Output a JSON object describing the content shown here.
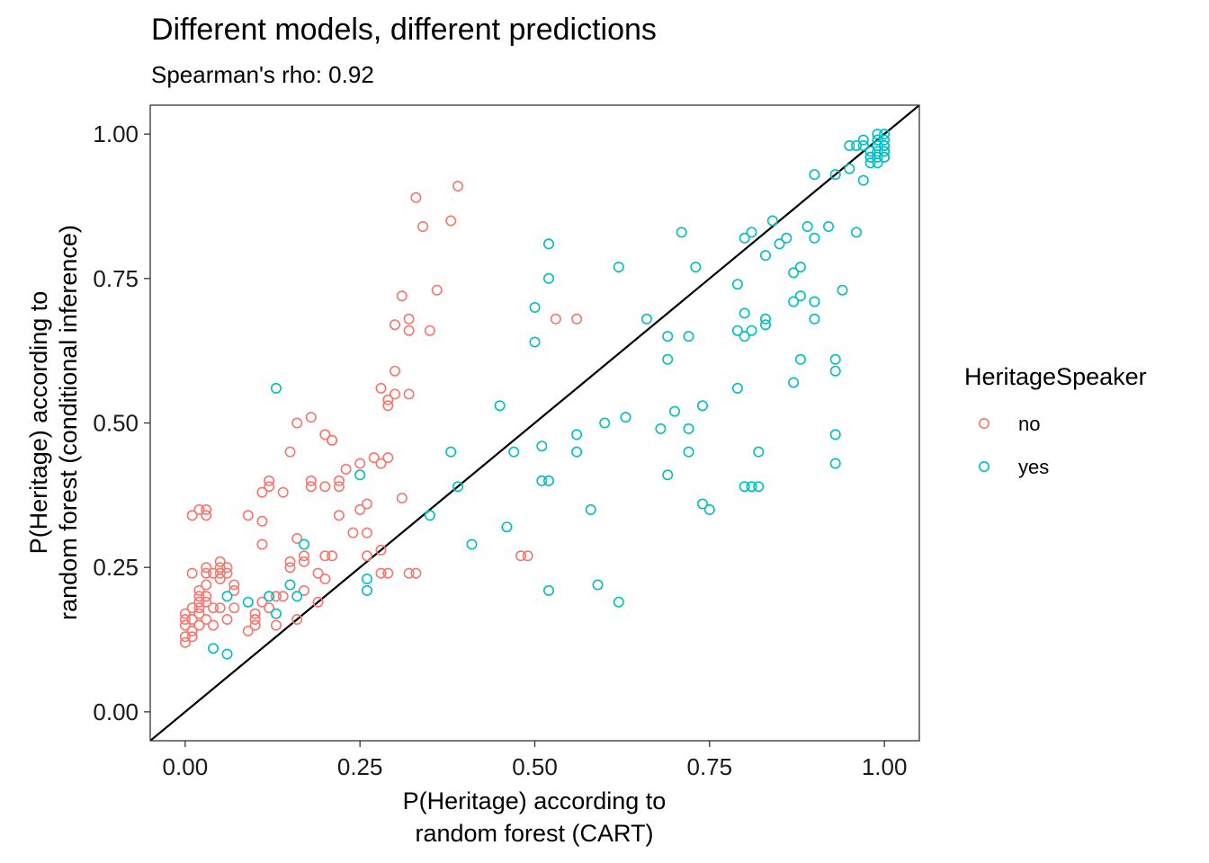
{
  "chart_data": {
    "type": "scatter",
    "title": "Different models, different predictions",
    "subtitle": "Spearman's rho: 0.92",
    "xlabel": [
      "P(Heritage) according to",
      "random forest (CART)"
    ],
    "ylabel": [
      "P(Heritage) according to",
      "random forest (conditional inference)"
    ],
    "xlim": [
      -0.05,
      1.05
    ],
    "ylim": [
      -0.05,
      1.05
    ],
    "x_ticks": [
      "0.00",
      "0.25",
      "0.50",
      "0.75",
      "1.00"
    ],
    "y_ticks": [
      "0.00",
      "0.25",
      "0.50",
      "0.75",
      "1.00"
    ],
    "grid": false,
    "reference_line": {
      "slope": 1,
      "intercept": 0
    },
    "legend": {
      "title": "HeritageSpeaker",
      "position": "right"
    },
    "series": [
      {
        "name": "no",
        "color": "#F8766D",
        "points": [
          [
            0.0,
            0.17
          ],
          [
            0.0,
            0.16
          ],
          [
            0.0,
            0.15
          ],
          [
            0.0,
            0.13
          ],
          [
            0.0,
            0.12
          ],
          [
            0.01,
            0.16
          ],
          [
            0.01,
            0.14
          ],
          [
            0.01,
            0.13
          ],
          [
            0.01,
            0.18
          ],
          [
            0.01,
            0.34
          ],
          [
            0.01,
            0.24
          ],
          [
            0.02,
            0.35
          ],
          [
            0.02,
            0.21
          ],
          [
            0.02,
            0.2
          ],
          [
            0.02,
            0.19
          ],
          [
            0.02,
            0.18
          ],
          [
            0.02,
            0.17
          ],
          [
            0.02,
            0.15
          ],
          [
            0.03,
            0.35
          ],
          [
            0.03,
            0.34
          ],
          [
            0.03,
            0.25
          ],
          [
            0.03,
            0.24
          ],
          [
            0.03,
            0.22
          ],
          [
            0.03,
            0.2
          ],
          [
            0.03,
            0.19
          ],
          [
            0.03,
            0.16
          ],
          [
            0.04,
            0.24
          ],
          [
            0.04,
            0.18
          ],
          [
            0.04,
            0.15
          ],
          [
            0.05,
            0.26
          ],
          [
            0.05,
            0.25
          ],
          [
            0.05,
            0.24
          ],
          [
            0.05,
            0.23
          ],
          [
            0.05,
            0.18
          ],
          [
            0.06,
            0.25
          ],
          [
            0.06,
            0.24
          ],
          [
            0.06,
            0.16
          ],
          [
            0.07,
            0.22
          ],
          [
            0.07,
            0.21
          ],
          [
            0.07,
            0.18
          ],
          [
            0.09,
            0.14
          ],
          [
            0.09,
            0.34
          ],
          [
            0.1,
            0.16
          ],
          [
            0.1,
            0.15
          ],
          [
            0.1,
            0.17
          ],
          [
            0.11,
            0.33
          ],
          [
            0.11,
            0.38
          ],
          [
            0.11,
            0.19
          ],
          [
            0.11,
            0.29
          ],
          [
            0.12,
            0.4
          ],
          [
            0.12,
            0.39
          ],
          [
            0.12,
            0.18
          ],
          [
            0.13,
            0.15
          ],
          [
            0.13,
            0.2
          ],
          [
            0.14,
            0.38
          ],
          [
            0.14,
            0.2
          ],
          [
            0.15,
            0.45
          ],
          [
            0.15,
            0.26
          ],
          [
            0.15,
            0.25
          ],
          [
            0.16,
            0.3
          ],
          [
            0.16,
            0.5
          ],
          [
            0.16,
            0.16
          ],
          [
            0.17,
            0.27
          ],
          [
            0.17,
            0.26
          ],
          [
            0.17,
            0.21
          ],
          [
            0.18,
            0.51
          ],
          [
            0.18,
            0.4
          ],
          [
            0.18,
            0.39
          ],
          [
            0.19,
            0.24
          ],
          [
            0.19,
            0.19
          ],
          [
            0.2,
            0.48
          ],
          [
            0.2,
            0.27
          ],
          [
            0.2,
            0.39
          ],
          [
            0.2,
            0.23
          ],
          [
            0.21,
            0.47
          ],
          [
            0.21,
            0.47
          ],
          [
            0.21,
            0.27
          ],
          [
            0.22,
            0.4
          ],
          [
            0.22,
            0.39
          ],
          [
            0.22,
            0.34
          ],
          [
            0.23,
            0.42
          ],
          [
            0.24,
            0.31
          ],
          [
            0.25,
            0.43
          ],
          [
            0.25,
            0.35
          ],
          [
            0.26,
            0.36
          ],
          [
            0.26,
            0.27
          ],
          [
            0.26,
            0.31
          ],
          [
            0.27,
            0.44
          ],
          [
            0.28,
            0.28
          ],
          [
            0.28,
            0.56
          ],
          [
            0.28,
            0.43
          ],
          [
            0.28,
            0.24
          ],
          [
            0.29,
            0.54
          ],
          [
            0.29,
            0.53
          ],
          [
            0.29,
            0.44
          ],
          [
            0.29,
            0.24
          ],
          [
            0.3,
            0.59
          ],
          [
            0.3,
            0.67
          ],
          [
            0.3,
            0.55
          ],
          [
            0.31,
            0.72
          ],
          [
            0.31,
            0.37
          ],
          [
            0.32,
            0.68
          ],
          [
            0.32,
            0.66
          ],
          [
            0.32,
            0.55
          ],
          [
            0.32,
            0.24
          ],
          [
            0.33,
            0.89
          ],
          [
            0.33,
            0.24
          ],
          [
            0.34,
            0.84
          ],
          [
            0.35,
            0.66
          ],
          [
            0.36,
            0.73
          ],
          [
            0.38,
            0.85
          ],
          [
            0.39,
            0.91
          ],
          [
            0.48,
            0.27
          ],
          [
            0.49,
            0.27
          ],
          [
            0.53,
            0.68
          ],
          [
            0.56,
            0.68
          ]
        ]
      },
      {
        "name": "yes",
        "color": "#00BFC4",
        "points": [
          [
            0.04,
            0.11
          ],
          [
            0.06,
            0.1
          ],
          [
            0.06,
            0.2
          ],
          [
            0.09,
            0.19
          ],
          [
            0.12,
            0.2
          ],
          [
            0.13,
            0.17
          ],
          [
            0.13,
            0.56
          ],
          [
            0.15,
            0.22
          ],
          [
            0.16,
            0.2
          ],
          [
            0.17,
            0.29
          ],
          [
            0.25,
            0.41
          ],
          [
            0.26,
            0.23
          ],
          [
            0.26,
            0.21
          ],
          [
            0.35,
            0.34
          ],
          [
            0.38,
            0.45
          ],
          [
            0.39,
            0.39
          ],
          [
            0.41,
            0.29
          ],
          [
            0.45,
            0.53
          ],
          [
            0.46,
            0.32
          ],
          [
            0.47,
            0.45
          ],
          [
            0.5,
            0.7
          ],
          [
            0.5,
            0.64
          ],
          [
            0.51,
            0.4
          ],
          [
            0.51,
            0.46
          ],
          [
            0.52,
            0.75
          ],
          [
            0.52,
            0.81
          ],
          [
            0.52,
            0.4
          ],
          [
            0.52,
            0.21
          ],
          [
            0.56,
            0.48
          ],
          [
            0.56,
            0.45
          ],
          [
            0.58,
            0.35
          ],
          [
            0.59,
            0.22
          ],
          [
            0.6,
            0.5
          ],
          [
            0.62,
            0.77
          ],
          [
            0.62,
            0.19
          ],
          [
            0.63,
            0.51
          ],
          [
            0.66,
            0.68
          ],
          [
            0.68,
            0.49
          ],
          [
            0.69,
            0.61
          ],
          [
            0.69,
            0.65
          ],
          [
            0.69,
            0.41
          ],
          [
            0.7,
            0.52
          ],
          [
            0.71,
            0.83
          ],
          [
            0.72,
            0.65
          ],
          [
            0.72,
            0.49
          ],
          [
            0.72,
            0.45
          ],
          [
            0.73,
            0.77
          ],
          [
            0.74,
            0.53
          ],
          [
            0.74,
            0.36
          ],
          [
            0.75,
            0.35
          ],
          [
            0.79,
            0.66
          ],
          [
            0.79,
            0.74
          ],
          [
            0.79,
            0.56
          ],
          [
            0.8,
            0.69
          ],
          [
            0.8,
            0.39
          ],
          [
            0.8,
            0.82
          ],
          [
            0.8,
            0.65
          ],
          [
            0.81,
            0.83
          ],
          [
            0.81,
            0.66
          ],
          [
            0.81,
            0.39
          ],
          [
            0.82,
            0.39
          ],
          [
            0.82,
            0.45
          ],
          [
            0.83,
            0.67
          ],
          [
            0.83,
            0.68
          ],
          [
            0.83,
            0.79
          ],
          [
            0.84,
            0.85
          ],
          [
            0.85,
            0.81
          ],
          [
            0.86,
            0.82
          ],
          [
            0.87,
            0.71
          ],
          [
            0.87,
            0.76
          ],
          [
            0.87,
            0.57
          ],
          [
            0.88,
            0.77
          ],
          [
            0.88,
            0.72
          ],
          [
            0.88,
            0.61
          ],
          [
            0.89,
            0.84
          ],
          [
            0.9,
            0.71
          ],
          [
            0.9,
            0.82
          ],
          [
            0.9,
            0.68
          ],
          [
            0.9,
            0.93
          ],
          [
            0.92,
            0.84
          ],
          [
            0.93,
            0.61
          ],
          [
            0.93,
            0.59
          ],
          [
            0.93,
            0.48
          ],
          [
            0.93,
            0.43
          ],
          [
            0.93,
            0.93
          ],
          [
            0.94,
            0.73
          ],
          [
            0.95,
            0.94
          ],
          [
            0.96,
            0.83
          ],
          [
            0.97,
            0.92
          ],
          [
            0.95,
            0.98
          ],
          [
            0.96,
            0.98
          ],
          [
            0.97,
            0.99
          ],
          [
            0.97,
            0.98
          ],
          [
            0.98,
            0.96
          ],
          [
            0.98,
            0.97
          ],
          [
            0.98,
            0.95
          ],
          [
            0.99,
            0.96
          ],
          [
            0.99,
            0.97
          ],
          [
            0.99,
            0.98
          ],
          [
            0.99,
            0.99
          ],
          [
            0.99,
            1.0
          ],
          [
            0.99,
            0.95
          ],
          [
            1.0,
            0.96
          ],
          [
            1.0,
            0.97
          ],
          [
            1.0,
            0.98
          ],
          [
            1.0,
            0.99
          ],
          [
            1.0,
            1.0
          ],
          [
            1.0,
            0.96
          ],
          [
            1.0,
            0.97
          ],
          [
            1.0,
            0.98
          ],
          [
            0.99,
            0.96
          ],
          [
            0.98,
            0.96
          ]
        ]
      }
    ]
  }
}
